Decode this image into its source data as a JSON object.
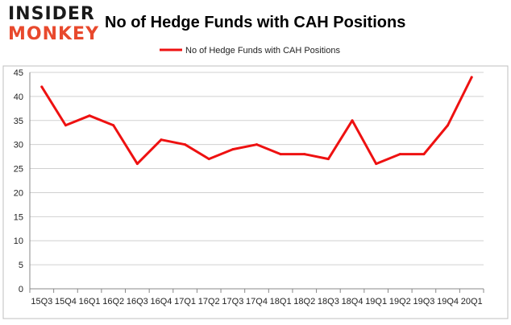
{
  "logo": {
    "top": "INSIDER",
    "bottom": "MONKEY"
  },
  "colors": {
    "line": "#ee1111",
    "grid": "#d0d0d0",
    "axis": "#888888",
    "logo_dark": "#1a1a1a",
    "logo_accent": "#e8492d"
  },
  "chart_data": {
    "type": "line",
    "title": "No of Hedge Funds with CAH Positions",
    "xlabel": "",
    "ylabel": "",
    "ylim": [
      0,
      45
    ],
    "yticks": [
      0,
      5,
      10,
      15,
      20,
      25,
      30,
      35,
      40,
      45
    ],
    "grid": "horizontal",
    "legend_position": "top-center",
    "categories": [
      "15Q3",
      "15Q4",
      "16Q1",
      "16Q2",
      "16Q3",
      "16Q4",
      "17Q1",
      "17Q2",
      "17Q3",
      "17Q4",
      "18Q1",
      "18Q2",
      "18Q3",
      "18Q4",
      "19Q1",
      "19Q2",
      "19Q3",
      "19Q4",
      "20Q1"
    ],
    "series": [
      {
        "name": "No of Hedge Funds with CAH Positions",
        "color": "#ee1111",
        "values": [
          42,
          34,
          36,
          34,
          26,
          31,
          30,
          27,
          29,
          30,
          28,
          28,
          27,
          35,
          26,
          28,
          28,
          34,
          44
        ]
      }
    ]
  }
}
